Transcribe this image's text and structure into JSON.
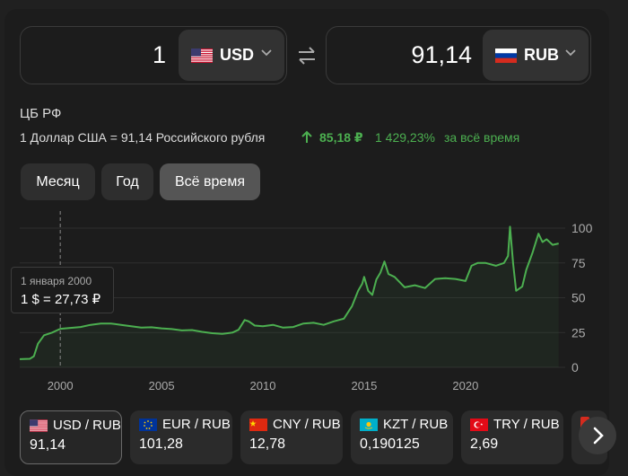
{
  "converter": {
    "from": {
      "amount": "1",
      "currency": "USD"
    },
    "to": {
      "amount": "91,14",
      "currency": "RUB"
    }
  },
  "info": {
    "source": "ЦБ РФ",
    "rate_text": "1 Доллар США = 91,14 Российского рубля",
    "change_abs": "85,18 ₽",
    "change_pct": "1 429,23%",
    "change_period": "за всё время",
    "change_color": "#4caf50"
  },
  "periods": [
    {
      "label": "Месяц"
    },
    {
      "label": "Год"
    },
    {
      "label": "Всё время",
      "selected": true
    }
  ],
  "tooltip": {
    "date": "1 января 2000",
    "value": "1 $ = 27,73 ₽"
  },
  "chart_data": {
    "type": "area",
    "x_ticks": [
      "2000",
      "2005",
      "2010",
      "2015",
      "2020"
    ],
    "y_ticks": [
      "0",
      "25",
      "50",
      "75",
      "100"
    ],
    "ylim": [
      0,
      100
    ],
    "xlim": [
      1998,
      2024.7
    ],
    "grid": true,
    "line_color": "#4caf50",
    "crosshair_x": 2000.0,
    "series": [
      {
        "x": [
          1998.0,
          1998.5,
          1998.7,
          1998.9,
          1999.2,
          1999.6,
          2000.0,
          2000.5,
          2001.0,
          2001.5,
          2002.0,
          2002.5,
          2003.0,
          2003.5,
          2004.0,
          2004.5,
          2005.0,
          2005.5,
          2006.0,
          2006.5,
          2007.0,
          2007.5,
          2008.0,
          2008.5,
          2008.8,
          2009.1,
          2009.3,
          2009.6,
          2010.0,
          2010.5,
          2011.0,
          2011.5,
          2012.0,
          2012.5,
          2013.0,
          2013.5,
          2014.0,
          2014.4,
          2014.7,
          2014.9,
          2015.0,
          2015.2,
          2015.4,
          2015.6,
          2015.8,
          2016.0,
          2016.2,
          2016.5,
          2017.0,
          2017.5,
          2018.0,
          2018.5,
          2019.0,
          2019.5,
          2020.0,
          2020.3,
          2020.6,
          2021.0,
          2021.5,
          2021.9,
          2022.1,
          2022.2,
          2022.35,
          2022.5,
          2022.8,
          2023.0,
          2023.3,
          2023.6,
          2023.8,
          2024.0,
          2024.3,
          2024.6
        ],
        "y": [
          5.9,
          6.1,
          8.0,
          17.0,
          23.0,
          25.0,
          27.7,
          28.3,
          29.0,
          30.5,
          31.5,
          31.5,
          30.5,
          29.5,
          28.5,
          28.8,
          28.0,
          27.5,
          26.5,
          26.8,
          25.5,
          24.5,
          24.0,
          25.0,
          27.0,
          34.0,
          33.0,
          30.0,
          29.5,
          30.5,
          28.5,
          29.0,
          31.5,
          32.0,
          30.5,
          33.0,
          35.0,
          44.0,
          55.0,
          60.0,
          65.0,
          55.0,
          52.0,
          63.0,
          68.0,
          76.0,
          67.0,
          65.0,
          57.5,
          59.0,
          57.0,
          63.5,
          64.0,
          63.5,
          62.0,
          73.0,
          75.0,
          75.0,
          73.0,
          75.0,
          80.0,
          101.0,
          75.0,
          55.0,
          58.0,
          70.0,
          82.0,
          96.0,
          90.0,
          92.0,
          88.0,
          89.0
        ]
      }
    ]
  },
  "pairs": [
    {
      "flag": "us-flag-icon",
      "label": "USD / RUB",
      "value": "91,14",
      "active": true
    },
    {
      "flag": "eu-flag-icon",
      "label": "EUR / RUB",
      "value": "101,28"
    },
    {
      "flag": "cn-flag-icon",
      "label": "CNY / RUB",
      "value": "12,78"
    },
    {
      "flag": "kz-flag-icon",
      "label": "KZT / RUB",
      "value": "0,190125"
    },
    {
      "flag": "tr-flag-icon",
      "label": "TRY / RUB",
      "value": "2,69"
    }
  ]
}
